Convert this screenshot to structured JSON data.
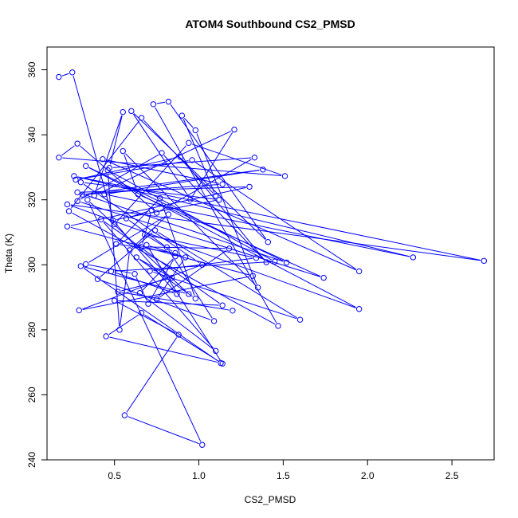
{
  "chart_data": {
    "type": "line",
    "title": "ATOM4 Southbound CS2_PMSD",
    "xlabel": "CS2_PMSD",
    "ylabel": "Theta (K)",
    "xlim": [
      0.1,
      2.75
    ],
    "ylim": [
      240,
      367
    ],
    "x_ticks": [
      "0.5",
      "1.0",
      "1.5",
      "2.0",
      "2.5"
    ],
    "x_tick_values": [
      0.5,
      1.0,
      1.5,
      2.0,
      2.5
    ],
    "y_ticks": [
      "240",
      "260",
      "280",
      "300",
      "320",
      "340",
      "360"
    ],
    "y_tick_values": [
      240,
      260,
      280,
      300,
      320,
      340,
      360
    ],
    "grid": false,
    "marker": "open-circle",
    "series": [
      {
        "color": "#0000ff",
        "points": [
          [
            0.17,
            357.8
          ],
          [
            0.25,
            359.2
          ],
          [
            0.5,
            312.5
          ],
          [
            0.94,
            337.5
          ],
          [
            1.51,
            327.3
          ],
          [
            0.17,
            333.0
          ],
          [
            0.28,
            337.3
          ],
          [
            0.75,
            316.0
          ],
          [
            1.33,
            333.0
          ],
          [
            0.47,
            329.8
          ],
          [
            0.55,
            347.0
          ],
          [
            0.38,
            321.3
          ],
          [
            1.21,
            341.6
          ],
          [
            0.95,
            320.1
          ],
          [
            0.6,
            347.3
          ],
          [
            1.41,
            307.0
          ],
          [
            0.82,
            350.2
          ],
          [
            0.73,
            349.4
          ],
          [
            1.47,
            281.2
          ],
          [
            0.23,
            316.5
          ],
          [
            0.66,
            345.2
          ],
          [
            1.1,
            321.2
          ],
          [
            0.9,
            345.9
          ],
          [
            0.98,
            341.4
          ],
          [
            1.35,
            293.0
          ],
          [
            0.55,
            335.0
          ],
          [
            0.64,
            321.7
          ],
          [
            1.74,
            296.0
          ],
          [
            0.28,
            319.6
          ],
          [
            0.78,
            334.4
          ],
          [
            1.4,
            300.8
          ],
          [
            0.89,
            333.2
          ],
          [
            0.27,
            326.2
          ],
          [
            0.96,
            332.2
          ],
          [
            1.95,
            298.0
          ],
          [
            0.43,
            332.5
          ],
          [
            1.14,
            324.8
          ],
          [
            0.31,
            321.6
          ],
          [
            1.38,
            329.3
          ],
          [
            0.44,
            321.7
          ],
          [
            2.27,
            302.3
          ],
          [
            0.26,
            327.3
          ],
          [
            2.69,
            301.2
          ],
          [
            0.22,
            318.6
          ],
          [
            1.95,
            286.4
          ],
          [
            0.33,
            330.4
          ],
          [
            1.52,
            300.7
          ],
          [
            0.28,
            322.3
          ],
          [
            1.3,
            324.0
          ],
          [
            0.22,
            311.8
          ],
          [
            1.32,
            296.6
          ],
          [
            0.29,
            286.0
          ],
          [
            1.02,
            300.0
          ],
          [
            0.3,
            325.4
          ],
          [
            1.12,
            320.0
          ],
          [
            0.49,
            313.7
          ],
          [
            0.87,
            291.0
          ],
          [
            0.48,
            298.0
          ],
          [
            1.45,
            301.0
          ],
          [
            0.46,
            329.1
          ],
          [
            0.53,
            280.0
          ],
          [
            0.59,
            304.5
          ],
          [
            0.82,
            315.5
          ],
          [
            0.33,
            300.2
          ],
          [
            0.62,
            297.2
          ],
          [
            0.7,
            288.0
          ],
          [
            0.86,
            302.6
          ],
          [
            0.65,
            291.3
          ],
          [
            1.1,
            273.5
          ],
          [
            0.42,
            314.0
          ],
          [
            1.14,
            287.5
          ],
          [
            0.5,
            289.0
          ],
          [
            0.88,
            278.5
          ],
          [
            0.56,
            253.7
          ],
          [
            1.02,
            244.6
          ],
          [
            0.34,
            320.0
          ],
          [
            0.94,
            291.0
          ],
          [
            0.3,
            299.6
          ],
          [
            1.13,
            269.8
          ],
          [
            0.45,
            278.0
          ],
          [
            0.66,
            285.2
          ],
          [
            1.14,
            269.6
          ],
          [
            0.69,
            306.1
          ],
          [
            0.92,
            302.3
          ],
          [
            0.75,
            289.4
          ],
          [
            1.18,
            305.0
          ],
          [
            0.66,
            305.5
          ],
          [
            0.72,
            316.8
          ],
          [
            0.57,
            314.3
          ],
          [
            0.81,
            305.4
          ],
          [
            1.09,
            282.7
          ],
          [
            0.4,
            295.6
          ],
          [
            0.74,
            310.6
          ],
          [
            1.6,
            283.1
          ],
          [
            0.71,
            298.1
          ],
          [
            1.34,
            302.1
          ],
          [
            0.68,
            309.3
          ],
          [
            0.86,
            303.6
          ],
          [
            0.51,
            306.4
          ],
          [
            0.77,
            320.5
          ],
          [
            0.98,
            289.6
          ],
          [
            0.63,
            302.3
          ],
          [
            0.84,
            296.0
          ],
          [
            0.52,
            291.7
          ],
          [
            1.2,
            285.9
          ]
        ]
      }
    ]
  }
}
